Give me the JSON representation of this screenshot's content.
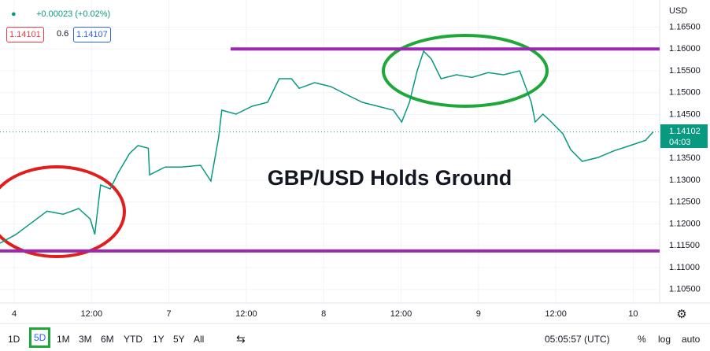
{
  "chart_data": {
    "type": "line",
    "annotation": "GBP/USD Holds Ground",
    "y_unit": "USD",
    "x": [
      -2.2,
      0.24,
      2.7,
      5.1,
      7.6,
      10,
      11.8,
      12.5,
      13.4,
      14.9,
      16.1,
      17.9,
      19.2,
      20.8,
      21,
      23.4,
      25.9,
      28.9,
      30.5,
      31.7,
      32.2,
      34.4,
      36.9,
      39.3,
      41.1,
      43,
      44.2,
      46.6,
      49.1,
      51.5,
      54,
      56.4,
      58.8,
      60.1,
      61.3,
      62.5,
      63.5,
      64.7,
      66.2,
      68.6,
      71,
      73.5,
      75.9,
      78.4,
      79.3,
      80.2,
      80.8,
      82,
      83.3,
      85.1,
      86.3,
      88.1,
      90.6,
      93,
      95.5,
      97.9,
      99.1
    ],
    "series": [
      {
        "name": "GBPUSD",
        "color": "#089981",
        "values": [
          1.11558,
          1.11755,
          1.12025,
          1.1229,
          1.1222,
          1.1235,
          1.1211,
          1.1176,
          1.1289,
          1.128,
          1.1316,
          1.1361,
          1.1379,
          1.1373,
          1.1312,
          1.133,
          1.133,
          1.1334,
          1.1298,
          1.1397,
          1.146,
          1.1451,
          1.1469,
          1.1478,
          1.1532,
          1.1532,
          1.151,
          1.1523,
          1.1514,
          1.1496,
          1.1478,
          1.1469,
          1.146,
          1.1433,
          1.1478,
          1.155,
          1.1595,
          1.1577,
          1.1532,
          1.1541,
          1.1535,
          1.1546,
          1.1541,
          1.155,
          1.1514,
          1.1478,
          1.1433,
          1.1451,
          1.1433,
          1.1406,
          1.137,
          1.1343,
          1.1352,
          1.1367,
          1.1379,
          1.1391,
          1.14102
        ]
      }
    ],
    "levels": [
      1.16,
      1.1138
    ],
    "level_color": "#9c27b0",
    "xlim": [
      -2.2,
      100.1
    ],
    "ylim": [
      1.1019,
      1.1712
    ],
    "xticks": [
      {
        "value": 0,
        "label": "4"
      },
      {
        "value": 12,
        "label": "12:00"
      },
      {
        "value": 24,
        "label": "7"
      },
      {
        "value": 36,
        "label": "12:00"
      },
      {
        "value": 48,
        "label": "8"
      },
      {
        "value": 60,
        "label": "12:00"
      },
      {
        "value": 72,
        "label": "9"
      },
      {
        "value": 84,
        "label": "12:00"
      },
      {
        "value": 96,
        "label": "10"
      }
    ],
    "yticks": [
      {
        "value": 1.165,
        "label": "1.16500"
      },
      {
        "value": 1.16,
        "label": "1.16000"
      },
      {
        "value": 1.155,
        "label": "1.15500"
      },
      {
        "value": 1.15,
        "label": "1.15000"
      },
      {
        "value": 1.145,
        "label": "1.14500"
      },
      {
        "value": 1.135,
        "label": "1.13500"
      },
      {
        "value": 1.13,
        "label": "1.13000"
      },
      {
        "value": 1.125,
        "label": "1.12500"
      },
      {
        "value": 1.12,
        "label": "1.12000"
      },
      {
        "value": 1.115,
        "label": "1.11500"
      },
      {
        "value": 1.11,
        "label": "1.11000"
      },
      {
        "value": 1.105,
        "label": "1.10500"
      }
    ],
    "grid": true
  },
  "header": {
    "change": "+0.00023 (+0.02%)",
    "bid": "1.14101",
    "spread": "0.6",
    "ask": "1.14107",
    "last_price": "1.14102",
    "countdown": "04:03"
  },
  "toolbar": {
    "ranges": [
      "1D",
      "5D",
      "1M",
      "3M",
      "6M",
      "YTD",
      "1Y",
      "5Y",
      "All"
    ],
    "time": "05:05:57 (UTC)",
    "options": [
      "%",
      "log",
      "auto"
    ]
  }
}
